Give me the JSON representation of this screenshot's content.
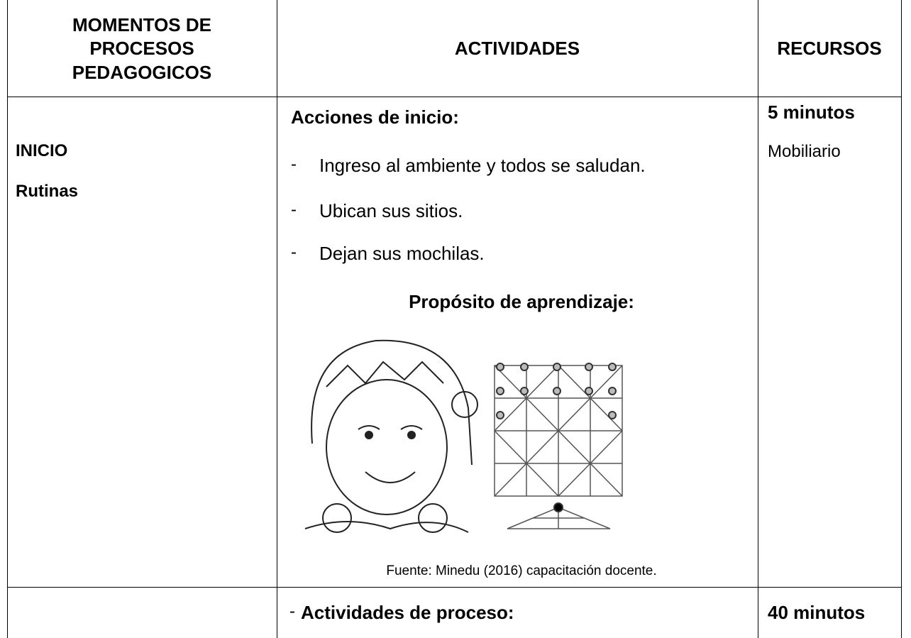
{
  "table": {
    "headers": [
      [
        "MOMENTOS DE",
        "PROCESOS",
        "PEDAGOGICOS"
      ],
      "ACTIVIDADES",
      "RECURSOS"
    ],
    "rows": [
      {
        "moment": [
          "INICIO",
          "Rutinas"
        ],
        "activities": {
          "heading": "Acciones de inicio:",
          "marker": "-",
          "items": [
            "Ingreso al ambiente y todos se saludan.",
            "Ubican sus sitios.",
            "Dejan sus mochilas."
          ],
          "subheading": "Propósito de aprendizaje:",
          "caption": "Fuente: Minedu (2016) capacitación docente."
        },
        "resources": [
          "5 minutos",
          "Mobiliario"
        ]
      },
      {
        "activities": {
          "marker": "-",
          "heading": "Actividades de proceso:"
        },
        "resources": [
          "40 minutos"
        ]
      }
    ]
  }
}
